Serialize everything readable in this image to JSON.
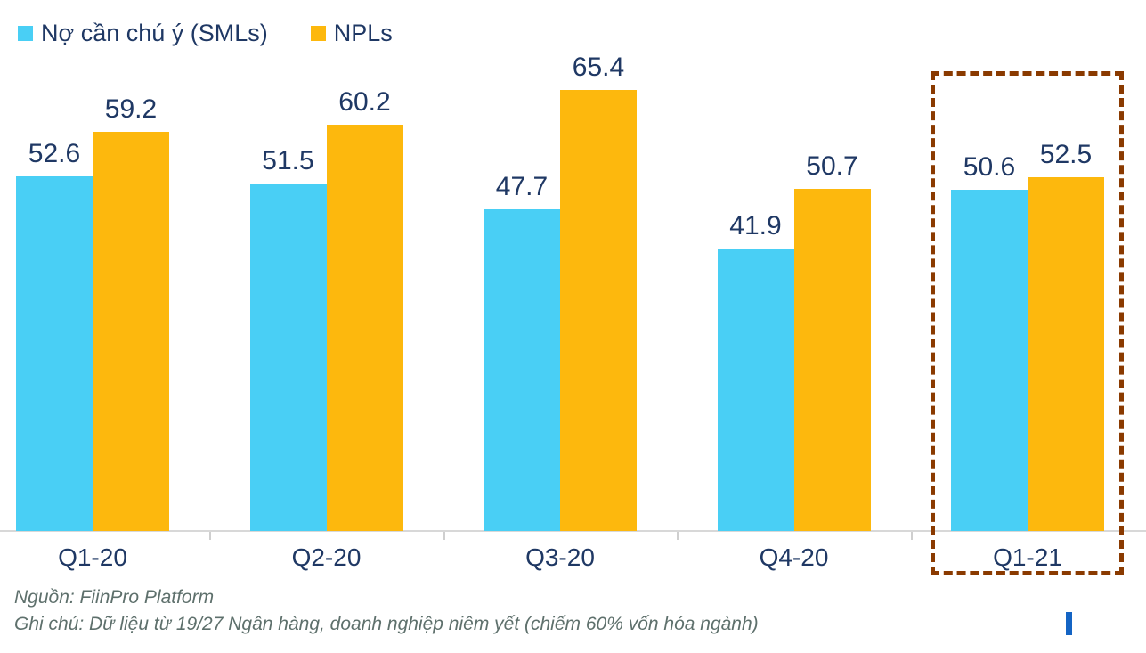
{
  "chart_data": {
    "type": "bar",
    "categories": [
      "Q1-20",
      "Q2-20",
      "Q3-20",
      "Q4-20",
      "Q1-21"
    ],
    "series": [
      {
        "name": "Nợ cần chú ý (SMLs)",
        "color": "#49CFF5",
        "values": [
          52.6,
          51.5,
          47.7,
          41.9,
          50.6
        ]
      },
      {
        "name": "NPLs",
        "color": "#FDB80D",
        "values": [
          59.2,
          60.2,
          65.4,
          50.7,
          52.5
        ]
      }
    ],
    "title": "",
    "xlabel": "",
    "ylabel": "",
    "ylim": [
      0,
      68
    ],
    "grid": false,
    "legend_position": "top-left",
    "value_labels_shown": true,
    "value_label_color": "#1F3864",
    "axis_line_color": "#D8D8D8",
    "highlight_category": "Q1-21",
    "highlight_box_color": "#8A3A00"
  },
  "footer": {
    "source": "Nguồn: FiinPro Platform",
    "note": "Ghi chú: Dữ liệu từ 19/27 Ngân hàng, doanh nghiệp niêm yết (chiếm 60% vốn hóa ngành)"
  },
  "artifacts": {
    "cursor_color": "#1464C4"
  }
}
